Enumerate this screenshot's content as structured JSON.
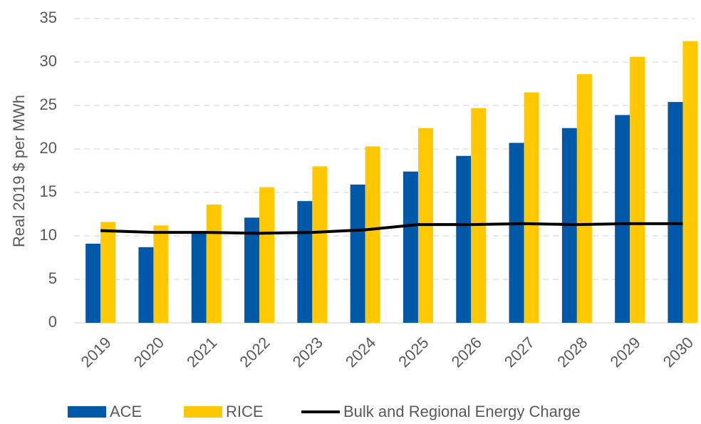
{
  "chart_data": {
    "type": "bar",
    "y_label": "Real 2019 $ per MWh",
    "categories": [
      "2019",
      "2020",
      "2021",
      "2022",
      "2023",
      "2024",
      "2025",
      "2026",
      "2027",
      "2028",
      "2029",
      "2030"
    ],
    "series": [
      {
        "name": "ACE",
        "color": "#0058a8",
        "values": [
          9.1,
          8.7,
          10.4,
          12.1,
          14.0,
          15.9,
          17.4,
          19.2,
          20.7,
          22.4,
          23.9,
          25.4
        ]
      },
      {
        "name": "RICE",
        "color": "#ffc800",
        "values": [
          11.6,
          11.2,
          13.6,
          15.6,
          18.0,
          20.3,
          22.4,
          24.7,
          26.5,
          28.6,
          30.6,
          32.4
        ]
      },
      {
        "name": "Bulk and Regional Energy Charge",
        "color": "#000000",
        "type": "line",
        "values": [
          10.6,
          10.4,
          10.4,
          10.3,
          10.4,
          10.7,
          11.3,
          11.3,
          11.4,
          11.3,
          11.4,
          11.4
        ]
      }
    ],
    "ylim": [
      0,
      35
    ],
    "yticks": [
      0,
      5,
      10,
      15,
      20,
      25,
      30,
      35
    ],
    "grid": true,
    "legend": "bottom"
  }
}
